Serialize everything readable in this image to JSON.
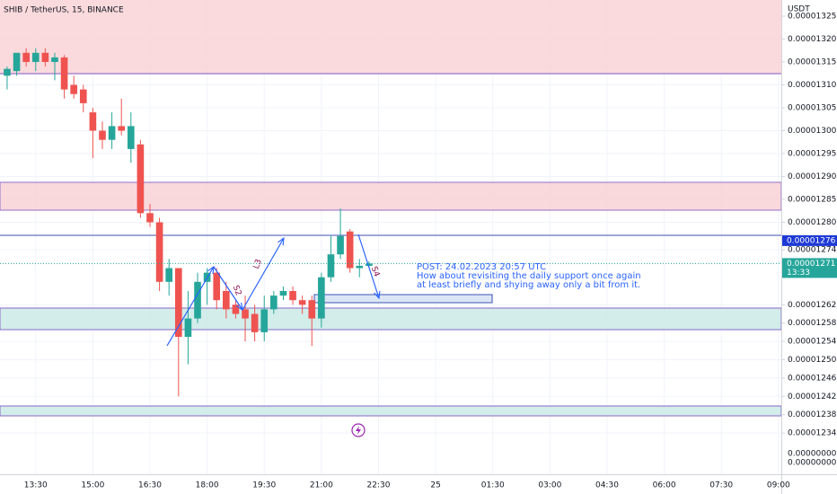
{
  "chart_data": {
    "type": "candlestick",
    "title": "SHIB / TetherUS, 15, BINANCE",
    "currency": "USDT",
    "up_color": "#26a69a",
    "down_color": "#ef5350",
    "grid": true,
    "ylim": [
      1.225e-05,
      1.32853e-05
    ],
    "xlim": [
      -0.75,
      81.3
    ],
    "open": [
      1.312e-05,
      1.313e-05,
      1.317e-05,
      1.315e-05,
      1.317e-05,
      1.315e-05,
      1.316e-05,
      1.31e-05,
      1.309e-05,
      1.304e-05,
      1.3e-05,
      1.298e-05,
      1.301e-05,
      1.296e-05,
      1.297e-05,
      1.282e-05,
      1.28e-05,
      1.267e-05,
      1.27e-05,
      1.255e-05,
      1.259e-05,
      1.267e-05,
      1.269e-05,
      1.265e-05,
      1.262e-05,
      1.261e-05,
      1.26e-05,
      1.256e-05,
      1.261e-05,
      1.264e-05,
      1.265e-05,
      1.263e-05,
      1.263e-05,
      1.259e-05,
      1.268e-05,
      1.273e-05,
      1.278e-05,
      1.27e-05,
      1.2705e-05
    ],
    "high": [
      1.314e-05,
      1.317e-05,
      1.318e-05,
      1.318e-05,
      1.318e-05,
      1.317e-05,
      1.3165e-05,
      1.312e-05,
      1.31e-05,
      1.305e-05,
      1.302e-05,
      1.304e-05,
      1.307e-05,
      1.304e-05,
      1.298e-05,
      1.284e-05,
      1.281e-05,
      1.272e-05,
      1.27e-05,
      1.265e-05,
      1.269e-05,
      1.27e-05,
      1.27e-05,
      1.267e-05,
      1.263e-05,
      1.264e-05,
      1.262e-05,
      1.264e-05,
      1.265e-05,
      1.266e-05,
      1.266e-05,
      1.264e-05,
      1.264e-05,
      1.269e-05,
      1.277e-05,
      1.283e-05,
      1.2785e-05,
      1.272e-05,
      1.2715e-05
    ],
    "low": [
      1.309e-05,
      1.312e-05,
      1.314e-05,
      1.313e-05,
      1.314e-05,
      1.311e-05,
      1.307e-05,
      1.307e-05,
      1.304e-05,
      1.294e-05,
      1.296e-05,
      1.296e-05,
      1.299e-05,
      1.293e-05,
      1.281e-05,
      1.279e-05,
      1.265e-05,
      1.264e-05,
      1.242e-05,
      1.249e-05,
      1.258e-05,
      1.262e-05,
      1.261e-05,
      1.259e-05,
      1.259e-05,
      1.254e-05,
      1.254e-05,
      1.254e-05,
      1.26e-05,
      1.263e-05,
      1.262e-05,
      1.26e-05,
      1.253e-05,
      1.257e-05,
      1.267e-05,
      1.272e-05,
      1.269e-05,
      1.268e-05,
      1.27e-05
    ],
    "close": [
      1.3135e-05,
      1.317e-05,
      1.315e-05,
      1.317e-05,
      1.315e-05,
      1.316e-05,
      1.309e-05,
      1.308e-05,
      1.306e-05,
      1.3e-05,
      1.298e-05,
      1.301e-05,
      1.3e-05,
      1.301e-05,
      1.282e-05,
      1.28e-05,
      1.267e-05,
      1.27e-05,
      1.255e-05,
      1.259e-05,
      1.267e-05,
      1.269e-05,
      1.263e-05,
      1.261e-05,
      1.26e-05,
      1.259e-05,
      1.256e-05,
      1.261e-05,
      1.264e-05,
      1.265e-05,
      1.263e-05,
      1.262e-05,
      1.259e-05,
      1.268e-05,
      1.273e-05,
      1.277e-05,
      1.27e-05,
      1.2705e-05,
      1.271e-05
    ],
    "yticks": [
      {
        "value": 1.325e-05,
        "label": "0.00001325"
      },
      {
        "value": 1.32e-05,
        "label": "0.00001320"
      },
      {
        "value": 1.315e-05,
        "label": "0.00001315"
      },
      {
        "value": 1.31e-05,
        "label": "0.00001310"
      },
      {
        "value": 1.305e-05,
        "label": "0.00001305"
      },
      {
        "value": 1.3e-05,
        "label": "0.00001300"
      },
      {
        "value": 1.295e-05,
        "label": "0.00001295"
      },
      {
        "value": 1.29e-05,
        "label": "0.00001290"
      },
      {
        "value": 1.285e-05,
        "label": "0.00001285"
      },
      {
        "value": 1.28e-05,
        "label": "0.00001280"
      },
      {
        "value": 1.274e-05,
        "label": "0.00001274"
      },
      {
        "value": 1.262e-05,
        "label": "0.00001262"
      },
      {
        "value": 1.258e-05,
        "label": "0.00001258"
      },
      {
        "value": 1.254e-05,
        "label": "0.00001254"
      },
      {
        "value": 1.25e-05,
        "label": "0.00001250"
      },
      {
        "value": 1.246e-05,
        "label": "0.00001246"
      },
      {
        "value": 1.242e-05,
        "label": "0.00001242"
      },
      {
        "value": 1.238e-05,
        "label": "0.00001238"
      },
      {
        "value": 1.234e-05,
        "label": "0.00001234"
      }
    ],
    "extra_axis_labels": [
      "0.00000000",
      "0.00000000"
    ],
    "xticks": [
      {
        "value": 3,
        "label": "13:30"
      },
      {
        "value": 9,
        "label": "15:00"
      },
      {
        "value": 15,
        "label": "16:30"
      },
      {
        "value": 21,
        "label": "18:00"
      },
      {
        "value": 27,
        "label": "19:30"
      },
      {
        "value": 33,
        "label": "21:00"
      },
      {
        "value": 39,
        "label": "22:30"
      },
      {
        "value": 45,
        "label": "25"
      },
      {
        "value": 51,
        "label": "01:30"
      },
      {
        "value": 57,
        "label": "03:00"
      },
      {
        "value": 63,
        "label": "04:30"
      },
      {
        "value": 69,
        "label": "06:00"
      },
      {
        "value": 75,
        "label": "07:30"
      },
      {
        "value": 81,
        "label": "09:00"
      }
    ],
    "marked_price": {
      "value": 1.276e-05,
      "label": "0.00001276"
    },
    "current_price": {
      "value": 1.271e-05,
      "label": "0.00001271",
      "countdown": "13:33"
    },
    "annotations": {
      "wave_labels": [
        "S2",
        "L3",
        "S4"
      ],
      "post": [
        "POST: 24.02.2023 20:57 UTC",
        "How about revisiting the daily support once again",
        "at least briefly and shying away only a bit from it."
      ]
    }
  }
}
